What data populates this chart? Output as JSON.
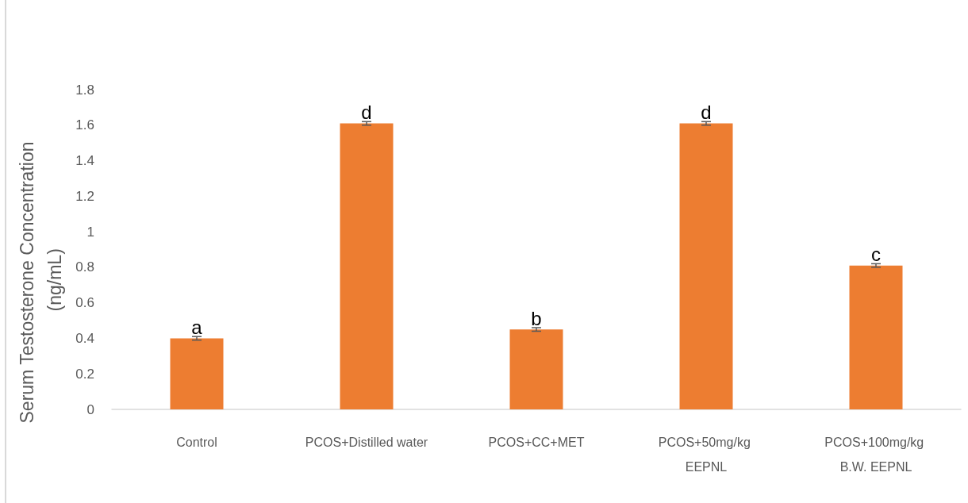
{
  "chart_data": {
    "type": "bar",
    "ylabel": "Serum Testosterone Concentration (ng/mL)",
    "categories": [
      "Control",
      "PCOS+Distilled water",
      "PCOS+CC+MET",
      "PCOS+50mg/kg EEPNL",
      "PCOS+100mg/kg B.W. EEPNL"
    ],
    "values": [
      0.4,
      1.61,
      0.45,
      1.61,
      0.81
    ],
    "errors": [
      0.01,
      0.01,
      0.01,
      0.01,
      0.01
    ],
    "color": "#ed7d31",
    "ylim": [
      0,
      1.8
    ],
    "yticks": [
      0,
      0.2,
      0.4,
      0.6,
      0.8,
      1,
      1.2,
      1.4,
      1.6,
      1.8
    ],
    "grid": false,
    "annotations": [
      {
        "text": "a",
        "x": "Control",
        "y": 0.4
      },
      {
        "text": "d",
        "x": "PCOS+Distilled water",
        "y": 1.61
      },
      {
        "text": "b",
        "x": "PCOS+CC+MET",
        "y": 0.45
      },
      {
        "text": "d",
        "x": "PCOS+50mg/kg EEPNL",
        "y": 1.61
      },
      {
        "text": "c",
        "x": "PCOS+100mg/kg B.W. EEPNL",
        "y": 0.81
      }
    ]
  }
}
